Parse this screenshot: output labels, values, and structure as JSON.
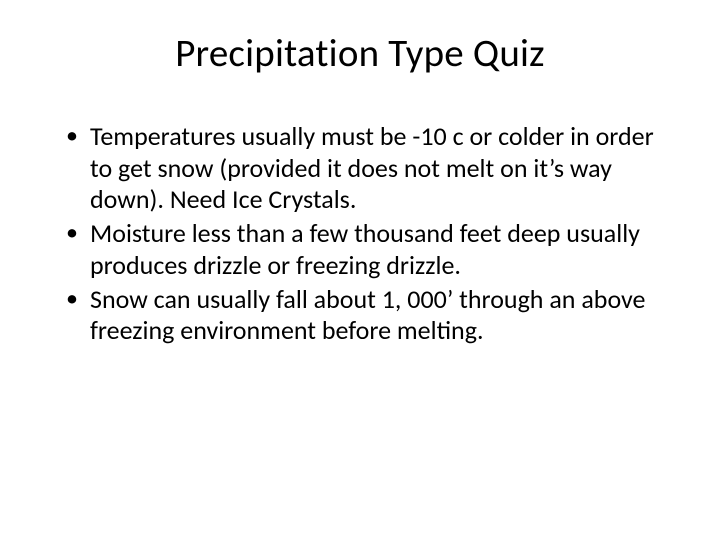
{
  "slide": {
    "title": "Precipitation Type Quiz",
    "title_fontsize": 39,
    "body_fontsize": 26,
    "background_color": "#ffffff",
    "text_color": "#000000",
    "bullets": [
      "Temperatures usually must be -10 c or colder in order to get snow (provided it does not melt on it’s way down). Need Ice Crystals.",
      "Moisture less than a few thousand feet deep usually produces drizzle or freezing drizzle.",
      "Snow can usually fall about 1, 000’ through an above freezing environment before melting."
    ]
  }
}
